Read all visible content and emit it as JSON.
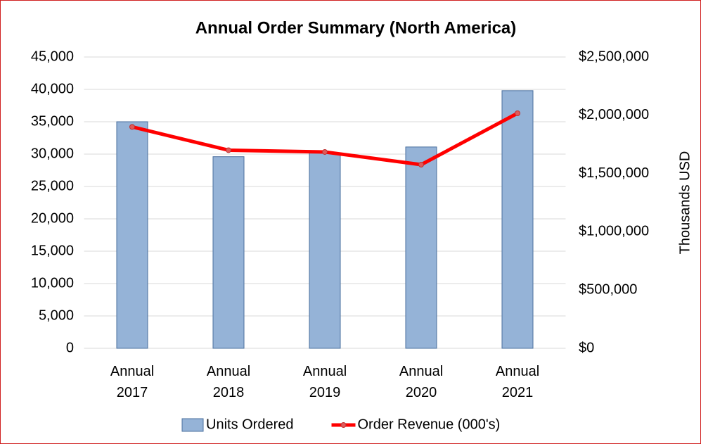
{
  "chart_data": {
    "type": "bar",
    "title": "Annual Order Summary (North America)",
    "categories": [
      "Annual 2017",
      "Annual 2018",
      "Annual 2019",
      "Annual 2020",
      "Annual 2021"
    ],
    "series": [
      {
        "name": "Units Ordered",
        "type": "bar",
        "color": "#95b3d7",
        "values": [
          35000,
          29600,
          30200,
          31100,
          39800
        ]
      },
      {
        "name": "Order Revenue (000's)",
        "type": "line",
        "axis": "y2",
        "color": "#ff0000",
        "values": [
          1900000,
          1700000,
          1685000,
          1576000,
          2017000
        ]
      }
    ],
    "ylim": [
      0,
      45000
    ],
    "yticks": [
      0,
      {
        "value": 5000,
        "label": "5,000"
      },
      {
        "value": 10000,
        "label": "10,000"
      },
      {
        "value": 15000,
        "label": "15,000"
      },
      {
        "value": 20000,
        "label": "20,000"
      },
      {
        "value": 25000,
        "label": "25,000"
      },
      {
        "value": 30000,
        "label": "30,000"
      },
      {
        "value": 35000,
        "label": "35,000"
      },
      {
        "value": 40000,
        "label": "40,000"
      },
      {
        "value": 45000,
        "label": "45,000"
      }
    ],
    "y2lim": [
      0,
      2500000
    ],
    "y2ticks": [
      {
        "value": 0,
        "label": "$0"
      },
      {
        "value": 500000,
        "label": "$500,000"
      },
      {
        "value": 1000000,
        "label": "$1,000,000"
      },
      {
        "value": 1500000,
        "label": "$1,500,000"
      },
      {
        "value": 2000000,
        "label": "$2,000,000"
      },
      {
        "value": 2500000,
        "label": "$2,500,000"
      }
    ],
    "y2_label": "Thousands USD",
    "grid": true,
    "legend": "bottom"
  }
}
